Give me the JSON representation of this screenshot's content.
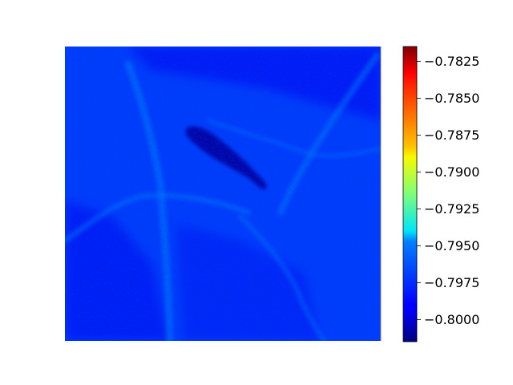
{
  "chart_data": {
    "type": "heatmap",
    "title": "",
    "xlabel": "",
    "ylabel": "",
    "axes_visible": false,
    "grid": false,
    "colormap": "jet",
    "colorbar": {
      "placement": "right",
      "vmin": -0.8015,
      "vmax": -0.7815,
      "ticks": [
        -0.7825,
        -0.785,
        -0.7875,
        -0.79,
        -0.7925,
        -0.795,
        -0.7975,
        -0.8
      ],
      "tick_labels": [
        "−0.7825",
        "−0.7850",
        "−0.7875",
        "−0.7900",
        "−0.7925",
        "−0.7950",
        "−0.7975",
        "−0.8000"
      ]
    },
    "field": {
      "background_value": -0.7978,
      "darker_region_value": -0.7992,
      "lighter_vein_value": -0.7965,
      "dark_object_value": -0.8008
    }
  }
}
